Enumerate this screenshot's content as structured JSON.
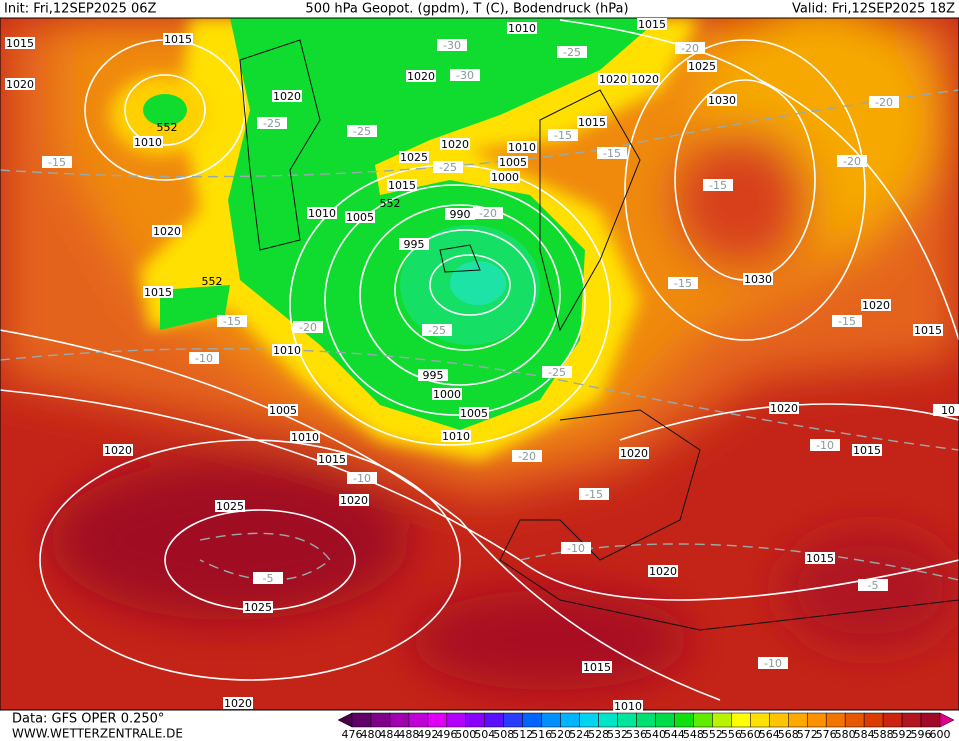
{
  "header": {
    "init": "Init: Fri,12SEP2025 06Z",
    "title": "500 hPa Geopot. (gpdm), T (C), Bodendruck (hPa)",
    "valid": "Valid: Fri,12SEP2025 18Z"
  },
  "footer": {
    "data_source": "Data: GFS OPER 0.250°",
    "website": "WWW.WETTERZENTRALE.DE"
  },
  "colorbar": {
    "labels": [
      "476",
      "480",
      "484",
      "488",
      "492",
      "496",
      "500",
      "504",
      "508",
      "512",
      "516",
      "520",
      "524",
      "528",
      "532",
      "536",
      "540",
      "544",
      "548",
      "552",
      "556",
      "560",
      "564",
      "568",
      "572",
      "576",
      "580",
      "584",
      "588",
      "592",
      "596",
      "600"
    ],
    "colors": [
      "#4a0048",
      "#62006a",
      "#80008c",
      "#a000b0",
      "#c000d8",
      "#e000f8",
      "#b400ff",
      "#8a00ff",
      "#5a10ff",
      "#2a3cff",
      "#0064ff",
      "#0090ff",
      "#00b4ff",
      "#00d4f0",
      "#00e4c8",
      "#00e49c",
      "#00e070",
      "#00dc48",
      "#10e010",
      "#60ec00",
      "#b8f400",
      "#ffff00",
      "#ffe000",
      "#ffc400",
      "#ffa800",
      "#ff9000",
      "#f47400",
      "#e85800",
      "#dc3c00",
      "#cc2410",
      "#b41420",
      "#a00a28",
      "#e0008c"
    ]
  },
  "map": {
    "isobar_labels": [
      "1015",
      "1020",
      "1015",
      "1020",
      "1010",
      "1020",
      "1015",
      "1010",
      "1005",
      "1010",
      "1015",
      "1020",
      "1020",
      "1025",
      "1025",
      "1020",
      "1010",
      "1005",
      "1015",
      "1025",
      "1020",
      "1020",
      "995",
      "990",
      "1000",
      "1005",
      "1010",
      "1015",
      "1010",
      "1015",
      "1020",
      "1020",
      "1025",
      "1030",
      "1030",
      "1020",
      "1015",
      "1020",
      "1015",
      "10",
      "1020",
      "995",
      "1000",
      "1005",
      "1010",
      "1020",
      "1015",
      "1015",
      "1010"
    ],
    "isotherm_labels": [
      "-30",
      "-30",
      "-25",
      "-20",
      "-25",
      "-25",
      "-15",
      "-25",
      "-15",
      "-20",
      "-15",
      "-15",
      "-20",
      "-20",
      "-25",
      "-20",
      "-15",
      "-10",
      "-25",
      "-15",
      "-15",
      "-20",
      "-10",
      "-15",
      "-10",
      "-10",
      "-5",
      "-5",
      "-10"
    ],
    "height_labels": [
      "552",
      "552",
      "552"
    ]
  }
}
